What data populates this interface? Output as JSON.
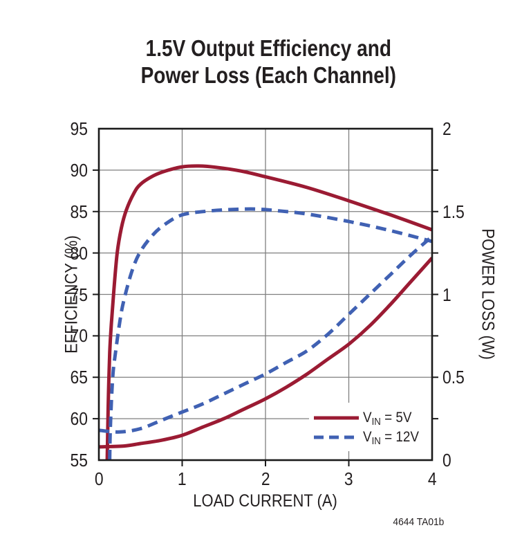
{
  "chart_data": {
    "type": "line",
    "title_line1": "1.5V Output Efficiency and",
    "title_line2": "Power Loss (Each Channel)",
    "xlabel": "LOAD CURRENT (A)",
    "ylabel_left": "EFFICIENCY (%)",
    "ylabel_right": "POWER LOSS (W)",
    "figure_ref": "4644 TA01b",
    "grid": true,
    "x_axis": {
      "min": 0,
      "max": 4,
      "ticks": [
        0,
        1,
        2,
        3,
        4
      ],
      "gridlines": [
        1,
        2,
        3
      ]
    },
    "y_left": {
      "min": 55,
      "max": 95,
      "tick_step": 5,
      "ticks": [
        95,
        90,
        85,
        80,
        75,
        70,
        65,
        60,
        55
      ]
    },
    "y_right": {
      "min": 0,
      "max": 2,
      "tick_values": [
        2,
        1.5,
        1,
        0.5,
        0
      ],
      "tick_labels": [
        "2",
        "1.5",
        "1",
        "0.5",
        "0"
      ]
    },
    "colors": {
      "red": "#9b1b33",
      "blue": "#4061b3",
      "grid": "#7f7f7f",
      "frame": "#1a1a1a",
      "text": "#231f20"
    },
    "legend": {
      "position": "inside-bottom-right",
      "entries": [
        {
          "prefix": "V",
          "sub": "IN",
          "suffix": " = 5V",
          "color": "#9b1b33",
          "style": "solid"
        },
        {
          "prefix": "V",
          "sub": "IN",
          "suffix": " = 12V",
          "color": "#4061b3",
          "style": "dashed"
        }
      ]
    },
    "series": [
      {
        "id": "eff_5v",
        "name": "Efficiency VIN = 5V",
        "axis": "left",
        "style": "solid",
        "color": "#9b1b33",
        "points": [
          [
            0.1,
            55
          ],
          [
            0.105,
            58
          ],
          [
            0.115,
            63
          ],
          [
            0.13,
            68
          ],
          [
            0.15,
            71.5
          ],
          [
            0.18,
            75.5
          ],
          [
            0.22,
            80
          ],
          [
            0.27,
            83
          ],
          [
            0.33,
            85.2
          ],
          [
            0.42,
            87.2
          ],
          [
            0.5,
            88.3
          ],
          [
            0.65,
            89.3
          ],
          [
            0.8,
            89.9
          ],
          [
            1.0,
            90.4
          ],
          [
            1.2,
            90.5
          ],
          [
            1.4,
            90.35
          ],
          [
            1.7,
            89.9
          ],
          [
            2.0,
            89.2
          ],
          [
            2.5,
            87.9
          ],
          [
            3.0,
            86.3
          ],
          [
            3.5,
            84.6
          ],
          [
            4.0,
            82.8
          ]
        ]
      },
      {
        "id": "eff_12v",
        "name": "Efficiency VIN = 12V",
        "axis": "left",
        "style": "dashed",
        "color": "#4061b3",
        "points": [
          [
            0.13,
            55
          ],
          [
            0.135,
            58
          ],
          [
            0.15,
            62
          ],
          [
            0.17,
            65.5
          ],
          [
            0.2,
            68
          ],
          [
            0.25,
            71.6
          ],
          [
            0.3,
            74.3
          ],
          [
            0.4,
            77.9
          ],
          [
            0.5,
            80.2
          ],
          [
            0.65,
            82.2
          ],
          [
            0.8,
            83.5
          ],
          [
            1.0,
            84.6
          ],
          [
            1.3,
            85.05
          ],
          [
            1.6,
            85.25
          ],
          [
            1.9,
            85.3
          ],
          [
            2.2,
            85.05
          ],
          [
            2.5,
            84.7
          ],
          [
            3.0,
            83.8
          ],
          [
            3.5,
            82.7
          ],
          [
            4.0,
            81.4
          ]
        ]
      },
      {
        "id": "loss_5v",
        "name": "Power Loss VIN = 5V",
        "axis": "right",
        "style": "solid",
        "color": "#9b1b33",
        "points": [
          [
            0,
            0.08
          ],
          [
            0.3,
            0.085
          ],
          [
            0.5,
            0.1
          ],
          [
            0.75,
            0.12
          ],
          [
            1.0,
            0.15
          ],
          [
            1.25,
            0.2
          ],
          [
            1.5,
            0.25
          ],
          [
            1.75,
            0.31
          ],
          [
            2.0,
            0.37
          ],
          [
            2.25,
            0.44
          ],
          [
            2.5,
            0.52
          ],
          [
            2.75,
            0.61
          ],
          [
            3.0,
            0.7
          ],
          [
            3.25,
            0.81
          ],
          [
            3.5,
            0.94
          ],
          [
            3.75,
            1.08
          ],
          [
            4.0,
            1.22
          ]
        ]
      },
      {
        "id": "loss_12v",
        "name": "Power Loss VIN = 12V",
        "axis": "right",
        "style": "dashed",
        "color": "#4061b3",
        "points": [
          [
            0,
            0.18
          ],
          [
            0.25,
            0.17
          ],
          [
            0.5,
            0.19
          ],
          [
            0.75,
            0.24
          ],
          [
            1.0,
            0.29
          ],
          [
            1.25,
            0.34
          ],
          [
            1.5,
            0.4
          ],
          [
            1.75,
            0.46
          ],
          [
            2.0,
            0.52
          ],
          [
            2.25,
            0.59
          ],
          [
            2.5,
            0.66
          ],
          [
            2.75,
            0.76
          ],
          [
            3.0,
            0.88
          ],
          [
            3.25,
            1.0
          ],
          [
            3.5,
            1.12
          ],
          [
            3.75,
            1.24
          ],
          [
            4.0,
            1.35
          ]
        ]
      }
    ]
  }
}
